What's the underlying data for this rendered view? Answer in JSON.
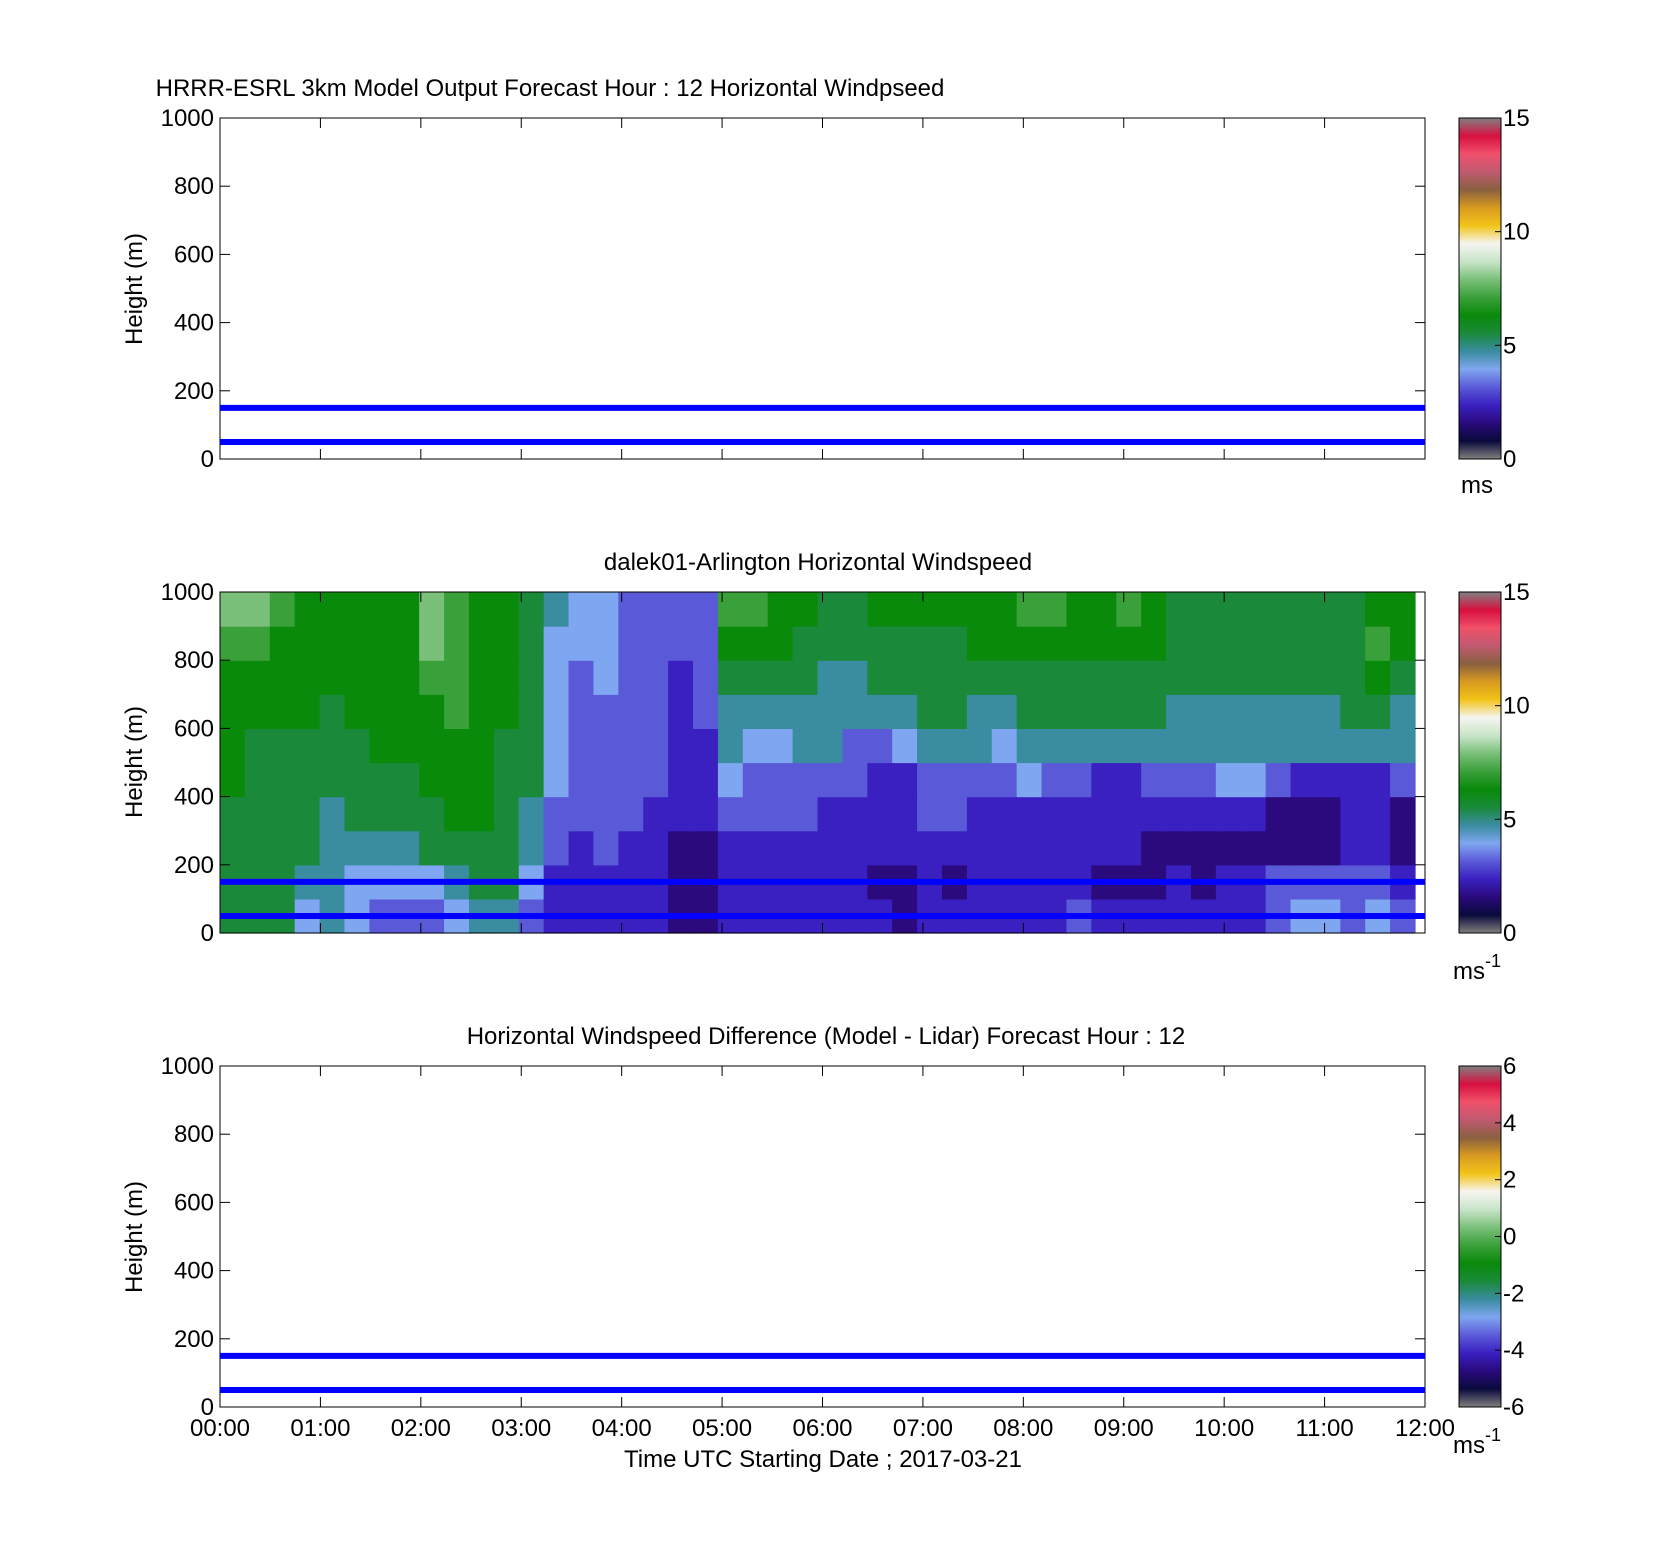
{
  "figure": {
    "xlabel": "Time UTC  Starting Date ; 2017-03-21",
    "x_ticks": [
      "00:00",
      "01:00",
      "02:00",
      "03:00",
      "04:00",
      "05:00",
      "06:00",
      "07:00",
      "08:00",
      "09:00",
      "10:00",
      "11:00",
      "12:00"
    ]
  },
  "colormap": [
    "#808080",
    "#0a0a3c",
    "#2a0a7c",
    "#3a20c0",
    "#5a5ad8",
    "#7fa6f0",
    "#3a8ca0",
    "#1a8a3a",
    "#0a8a0a",
    "#3aa03a",
    "#7ac07a",
    "#c8e4c8",
    "#f5f5f0",
    "#f2c418",
    "#d89a20",
    "#8a6040",
    "#c05a70",
    "#f0506a",
    "#d81040",
    "#808080"
  ],
  "chart_data": [
    {
      "type": "line",
      "title": "HRRR-ESRL 3km Model Output   Forecast Hour : 12 Horizontal Windpseed",
      "ylabel": "Height (m)",
      "xlim": [
        "00:00",
        "12:00"
      ],
      "ylim": [
        0,
        1000
      ],
      "y_ticks": [
        "0",
        "200",
        "400",
        "600",
        "800",
        "1000"
      ],
      "hlines_m": [
        50,
        150
      ],
      "hline_color": "#0000ff",
      "colorbar": {
        "range": [
          0,
          15
        ],
        "ticks": [
          "0",
          "5",
          "10",
          "15"
        ],
        "unit": "ms",
        "unit_exp": ""
      }
    },
    {
      "type": "heatmap",
      "title": "dalek01-Arlington  Horizontal Windspeed",
      "ylabel": "Height (m)",
      "xlim": [
        "00:00",
        "12:00"
      ],
      "ylim": [
        0,
        1000
      ],
      "y_ticks": [
        "0",
        "200",
        "400",
        "600",
        "800",
        "1000"
      ],
      "hlines_m": [
        50,
        150
      ],
      "hline_color": "#0000ff",
      "colorbar": {
        "range": [
          0,
          15
        ],
        "ticks": [
          "0",
          "5",
          "10",
          "15"
        ],
        "unit": "ms",
        "unit_exp": "-1"
      },
      "heights_m": [
        50,
        150,
        250,
        350,
        450,
        550,
        650,
        750,
        850,
        950
      ],
      "time_columns": [
        "00:00",
        "00:15",
        "00:30",
        "00:45",
        "01:00",
        "01:15",
        "01:30",
        "01:45",
        "02:00",
        "02:15",
        "02:30",
        "02:45",
        "03:00",
        "03:15",
        "03:30",
        "03:45",
        "04:00",
        "04:15",
        "04:30",
        "04:45",
        "05:00",
        "05:15",
        "05:30",
        "05:45",
        "06:00",
        "06:15",
        "06:30",
        "06:45",
        "07:00",
        "07:15",
        "07:30",
        "07:45",
        "08:00",
        "08:15",
        "08:30",
        "08:45",
        "09:00",
        "09:15",
        "09:30",
        "09:45",
        "10:00",
        "10:15",
        "10:30",
        "10:45",
        "11:00",
        "11:15",
        "11:30",
        "11:45"
      ],
      "values_ms_1": [
        [
          5.5,
          5.0,
          5.0,
          3.5,
          4.0,
          3.5,
          3.0,
          3.0,
          3.0,
          3.5,
          4.5,
          4.5,
          3.0,
          1.5,
          1.5,
          1.5,
          1.5,
          1.5,
          1.0,
          1.0,
          1.5,
          1.5,
          1.5,
          2.0,
          1.5,
          1.5,
          1.5,
          1.0,
          1.5,
          1.5,
          1.5,
          1.5,
          2.0,
          2.0,
          2.5,
          1.5,
          2.0,
          1.5,
          1.5,
          1.5,
          1.5,
          1.5,
          3.0,
          3.5,
          3.5,
          2.5,
          3.5,
          2.5
        ],
        [
          5.0,
          5.0,
          5.0,
          4.0,
          4.0,
          3.5,
          3.5,
          3.5,
          3.5,
          4.0,
          5.0,
          5.0,
          3.5,
          1.5,
          1.5,
          2.0,
          1.5,
          1.5,
          1.0,
          0.5,
          1.5,
          1.5,
          1.5,
          2.0,
          1.5,
          1.5,
          1.0,
          1.0,
          1.5,
          1.0,
          1.5,
          1.5,
          1.5,
          1.5,
          1.5,
          1.0,
          1.0,
          1.0,
          1.5,
          1.0,
          1.5,
          1.5,
          2.5,
          3.0,
          3.0,
          2.5,
          3.0,
          2.0
        ],
        [
          5.5,
          5.0,
          5.0,
          5.0,
          4.5,
          4.5,
          4.5,
          4.5,
          5.0,
          5.0,
          5.5,
          5.5,
          4.0,
          2.5,
          2.0,
          2.5,
          2.0,
          1.5,
          1.0,
          1.0,
          2.0,
          2.0,
          2.0,
          2.0,
          1.5,
          1.5,
          1.5,
          1.5,
          2.0,
          2.0,
          1.5,
          1.5,
          1.5,
          1.5,
          1.5,
          1.5,
          1.5,
          1.0,
          1.0,
          1.0,
          1.0,
          1.0,
          1.0,
          1.0,
          1.0,
          1.5,
          1.5,
          1.0
        ],
        [
          5.5,
          5.0,
          5.0,
          5.0,
          4.5,
          5.0,
          5.0,
          5.0,
          5.5,
          6.0,
          6.0,
          5.5,
          4.5,
          3.0,
          2.5,
          3.0,
          2.5,
          2.0,
          1.5,
          1.5,
          2.5,
          2.5,
          2.5,
          3.0,
          2.0,
          2.0,
          2.0,
          2.0,
          2.5,
          2.5,
          1.5,
          1.5,
          1.5,
          1.5,
          1.5,
          1.5,
          1.5,
          1.5,
          1.5,
          1.5,
          1.5,
          1.5,
          1.0,
          1.0,
          1.0,
          1.5,
          1.5,
          1.0
        ],
        [
          6.0,
          5.5,
          5.0,
          5.0,
          5.0,
          5.5,
          5.5,
          5.5,
          6.0,
          6.5,
          6.0,
          5.5,
          5.0,
          3.5,
          3.0,
          3.0,
          3.0,
          2.5,
          2.0,
          2.0,
          3.5,
          3.0,
          3.0,
          3.0,
          2.5,
          2.5,
          2.0,
          2.0,
          3.0,
          2.5,
          2.5,
          2.5,
          3.5,
          2.5,
          2.5,
          2.0,
          2.0,
          3.0,
          2.5,
          2.5,
          3.5,
          3.5,
          2.5,
          2.0,
          2.0,
          2.0,
          2.0,
          2.5
        ],
        [
          6.0,
          5.5,
          5.5,
          5.5,
          5.0,
          5.5,
          6.0,
          6.0,
          6.5,
          6.5,
          6.0,
          5.5,
          5.0,
          3.5,
          3.0,
          3.0,
          2.5,
          2.5,
          2.0,
          2.0,
          4.0,
          3.5,
          3.5,
          4.0,
          4.0,
          3.0,
          3.0,
          3.5,
          4.0,
          4.5,
          4.0,
          3.5,
          4.0,
          4.5,
          4.5,
          4.5,
          4.5,
          4.5,
          4.5,
          4.5,
          4.5,
          4.5,
          4.5,
          4.5,
          4.5,
          4.5,
          4.5,
          4.5
        ],
        [
          6.5,
          6.0,
          6.0,
          6.0,
          5.5,
          6.0,
          6.0,
          6.5,
          6.5,
          7.0,
          6.0,
          6.0,
          5.0,
          3.5,
          3.0,
          3.0,
          2.5,
          2.5,
          2.0,
          2.5,
          4.5,
          4.5,
          4.5,
          4.5,
          4.5,
          4.5,
          4.5,
          4.5,
          5.0,
          5.0,
          4.5,
          4.5,
          5.0,
          5.0,
          5.0,
          5.0,
          5.0,
          5.0,
          4.5,
          4.5,
          4.5,
          4.5,
          4.5,
          4.5,
          4.5,
          5.0,
          5.0,
          4.5
        ],
        [
          6.5,
          6.5,
          6.5,
          6.5,
          6.0,
          6.0,
          6.5,
          6.5,
          7.0,
          7.0,
          6.0,
          6.0,
          5.0,
          3.5,
          3.0,
          3.5,
          3.0,
          2.5,
          2.0,
          2.5,
          5.5,
          5.5,
          5.0,
          5.0,
          4.5,
          4.5,
          5.0,
          5.0,
          5.0,
          5.0,
          5.0,
          5.0,
          5.5,
          5.5,
          5.5,
          5.5,
          5.5,
          5.0,
          5.0,
          5.0,
          5.0,
          5.0,
          5.0,
          5.0,
          5.0,
          5.0,
          6.5,
          5.5
        ],
        [
          7.0,
          7.0,
          6.5,
          6.5,
          6.5,
          6.0,
          6.5,
          6.5,
          7.5,
          7.0,
          6.0,
          6.0,
          5.0,
          3.5,
          3.5,
          3.5,
          3.0,
          2.5,
          2.5,
          2.5,
          6.5,
          6.5,
          6.0,
          5.5,
          5.0,
          5.0,
          5.5,
          5.5,
          5.5,
          5.5,
          6.0,
          6.0,
          6.5,
          6.5,
          6.0,
          6.0,
          6.5,
          6.0,
          5.5,
          5.0,
          5.0,
          5.0,
          5.0,
          5.0,
          5.0,
          5.5,
          7.0,
          6.0
        ],
        [
          7.5,
          7.5,
          7.0,
          6.5,
          6.5,
          6.0,
          6.5,
          6.5,
          7.5,
          7.0,
          6.0,
          6.0,
          5.0,
          4.0,
          3.5,
          3.5,
          3.0,
          2.5,
          2.5,
          2.5,
          7.0,
          7.0,
          6.5,
          6.0,
          5.5,
          5.5,
          6.0,
          6.0,
          6.0,
          6.0,
          6.5,
          6.5,
          7.0,
          7.0,
          6.5,
          6.5,
          7.0,
          6.5,
          5.5,
          5.0,
          5.0,
          5.0,
          5.0,
          5.0,
          5.0,
          5.5,
          6.0,
          6.0
        ]
      ]
    },
    {
      "type": "line",
      "title": "Horizontal Windspeed Difference (Model - Lidar) Forecast Hour : 12",
      "ylabel": "Height (m)",
      "xlim": [
        "00:00",
        "12:00"
      ],
      "ylim": [
        0,
        1000
      ],
      "y_ticks": [
        "0",
        "200",
        "400",
        "600",
        "800",
        "1000"
      ],
      "hlines_m": [
        50,
        150
      ],
      "hline_color": "#0000ff",
      "colorbar": {
        "range": [
          -6,
          6
        ],
        "ticks": [
          "-6",
          "-4",
          "-2",
          "0",
          "2",
          "4",
          "6"
        ],
        "unit": "ms",
        "unit_exp": "-1"
      }
    }
  ]
}
